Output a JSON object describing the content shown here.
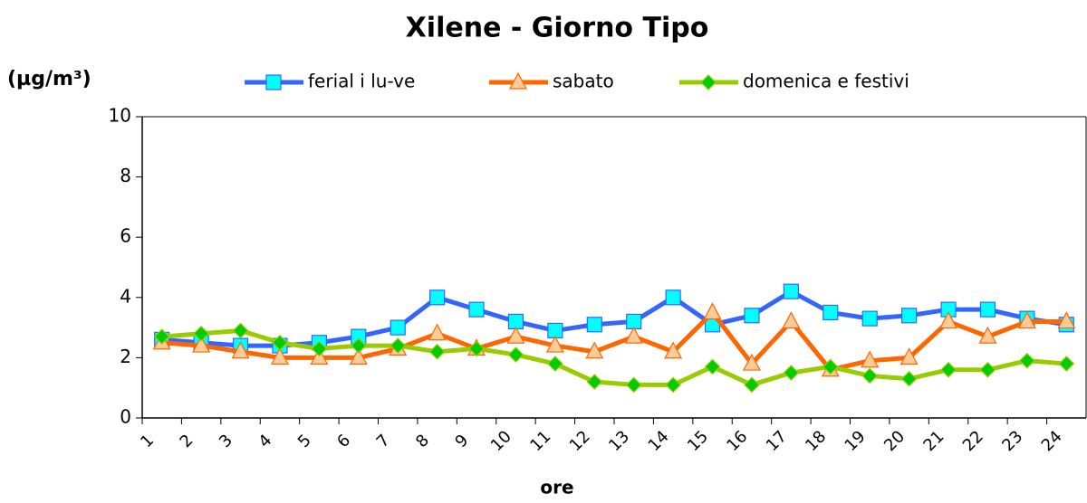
{
  "chart_data": {
    "type": "line",
    "title": "Xilene - Giorno Tipo",
    "y_label": "(µg/m³)",
    "x_label": "ore",
    "categories": [
      "1",
      "2",
      "3",
      "4",
      "5",
      "6",
      "7",
      "8",
      "9",
      "10",
      "11",
      "12",
      "13",
      "14",
      "15",
      "16",
      "17",
      "18",
      "19",
      "20",
      "21",
      "22",
      "23",
      "24"
    ],
    "series": [
      {
        "name": "ferial i lu-ve",
        "color": "#3366ff",
        "marker": "square",
        "marker_color": "#00ffff",
        "values": [
          2.6,
          2.5,
          2.4,
          2.4,
          2.5,
          2.7,
          3.0,
          4.0,
          3.6,
          3.2,
          2.9,
          3.1,
          3.2,
          4.0,
          3.1,
          3.4,
          4.2,
          3.5,
          3.3,
          3.4,
          3.6,
          3.6,
          3.3,
          3.1
        ]
      },
      {
        "name": "sabato",
        "color": "#ff6600",
        "marker": "triangle",
        "marker_color": "#ffcc99",
        "values": [
          2.5,
          2.4,
          2.2,
          2.0,
          2.0,
          2.0,
          2.3,
          2.8,
          2.3,
          2.7,
          2.4,
          2.2,
          2.7,
          2.2,
          3.5,
          1.8,
          3.2,
          1.6,
          1.9,
          2.0,
          3.2,
          2.7,
          3.2,
          3.2
        ]
      },
      {
        "name": "domenica e festivi",
        "color": "#99cc00",
        "marker": "diamond",
        "marker_color": "#00cc00",
        "values": [
          2.7,
          2.8,
          2.9,
          2.5,
          2.3,
          2.4,
          2.4,
          2.2,
          2.3,
          2.1,
          1.8,
          1.2,
          1.1,
          1.1,
          1.7,
          1.1,
          1.5,
          1.7,
          1.4,
          1.3,
          1.6,
          1.6,
          1.9,
          1.8
        ]
      }
    ],
    "ylim": [
      0,
      10
    ],
    "yticks": [
      0,
      2,
      4,
      6,
      8,
      10
    ],
    "grid": false
  }
}
